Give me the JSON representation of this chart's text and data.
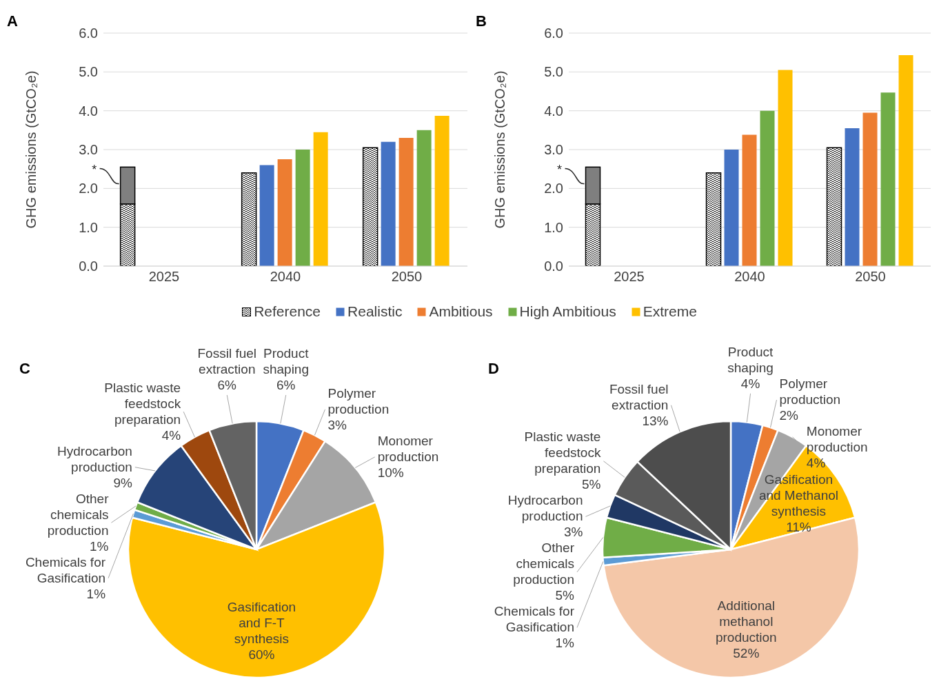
{
  "chart_data": [
    {
      "type": "bar",
      "title": "A",
      "ylabel": "GHG emissions (GtCO₂e)",
      "categories": [
        "2025",
        "2040",
        "2050"
      ],
      "series": [
        {
          "name": "Reference",
          "color": "#000000",
          "values": [
            1.6,
            2.4,
            3.05
          ]
        },
        {
          "color": "#7f7f7f",
          "values": [
            0.95,
            null,
            null
          ],
          "base": [
            1.6,
            null,
            null
          ]
        },
        {
          "name": "Realistic",
          "color": "#4472c4",
          "values": [
            null,
            2.6,
            3.2
          ]
        },
        {
          "name": "Ambitious",
          "color": "#ed7d31",
          "values": [
            null,
            2.75,
            3.3
          ]
        },
        {
          "name": "High Ambitious",
          "color": "#70ad47",
          "values": [
            null,
            3.0,
            3.5
          ]
        },
        {
          "name": "Extreme",
          "color": "#ffc000",
          "values": [
            null,
            3.45,
            3.87
          ]
        }
      ],
      "ylim": [
        0,
        6
      ],
      "yticks": [
        {
          "value": 0,
          "label": "0.0"
        },
        {
          "value": 1,
          "label": "1.0"
        },
        {
          "value": 2,
          "label": "2.0"
        },
        {
          "value": 3,
          "label": "3.0"
        },
        {
          "value": 4,
          "label": "4.0"
        },
        {
          "value": 5,
          "label": "5.0"
        },
        {
          "value": 6,
          "label": "6.0"
        }
      ],
      "grid": "y",
      "legend": "bottom",
      "annotations": [
        "*"
      ]
    },
    {
      "type": "bar",
      "title": "B",
      "ylabel": "GHG emissions (GtCO₂e)",
      "categories": [
        "2025",
        "2040",
        "2050"
      ],
      "series": [
        {
          "color": "#000000",
          "values": [
            1.6,
            2.4,
            3.05
          ]
        },
        {
          "color": "#7f7f7f",
          "values": [
            0.95,
            null,
            null
          ],
          "base": [
            1.6,
            null,
            null
          ]
        },
        {
          "color": "#4472c4",
          "values": [
            null,
            3.0,
            3.55
          ]
        },
        {
          "color": "#ed7d31",
          "values": [
            null,
            3.38,
            3.95
          ]
        },
        {
          "color": "#70ad47",
          "values": [
            null,
            4.0,
            4.47
          ]
        },
        {
          "color": "#ffc000",
          "values": [
            null,
            5.05,
            5.43
          ]
        }
      ],
      "ylim": [
        0,
        6
      ],
      "yticks": [
        {
          "value": 0,
          "label": "0.0"
        },
        {
          "value": 1,
          "label": "1.0"
        },
        {
          "value": 2,
          "label": "2.0"
        },
        {
          "value": 3,
          "label": "3.0"
        },
        {
          "value": 4,
          "label": "4.0"
        },
        {
          "value": 5,
          "label": "5.0"
        },
        {
          "value": 6,
          "label": "6.0"
        }
      ],
      "grid": "y",
      "annotations": [
        "*"
      ]
    },
    {
      "type": "pie",
      "title": "C",
      "categories": [
        "Product shaping",
        "Polymer production",
        "Monomer production",
        "Gasification and F-T synthesis",
        "Chemicals for Gasification",
        "Other chemicals production",
        "Hydrocarbon production",
        "Plastic waste feedstock preparation",
        "Fossil fuel extraction"
      ],
      "values": [
        6,
        3,
        10,
        60,
        1,
        1,
        9,
        4,
        6
      ],
      "value_labels": [
        "6%",
        "3%",
        "10%",
        "60%",
        "1%",
        "1%",
        "9%",
        "4%",
        "6%"
      ],
      "colors": [
        "#4472c4",
        "#ed7d31",
        "#a5a5a5",
        "#ffc000",
        "#5b9bd5",
        "#70ad47",
        "#264478",
        "#9e480e",
        "#636363"
      ]
    },
    {
      "type": "pie",
      "title": "D",
      "categories": [
        "Product shaping",
        "Polymer production",
        "Monomer production",
        "Gasification and Methanol synthesis",
        "Additional methanol production",
        "Chemicals for Gasification",
        "Other chemicals production",
        "Hydrocarbon production",
        "Plastic waste feedstock preparation",
        "Fossil fuel extraction"
      ],
      "values": [
        4,
        2,
        4,
        11,
        52,
        1,
        5,
        3,
        5,
        13
      ],
      "value_labels": [
        "4%",
        "2%",
        "4%",
        "11%",
        "52%",
        "1%",
        "5%",
        "3%",
        "5%",
        "13%"
      ],
      "colors": [
        "#4472c4",
        "#ed7d31",
        "#a5a5a5",
        "#ffc000",
        "#f4c7a8",
        "#5b9bd5",
        "#70ad47",
        "#203864",
        "#5a5a5a",
        "#4d4d4d"
      ]
    }
  ]
}
